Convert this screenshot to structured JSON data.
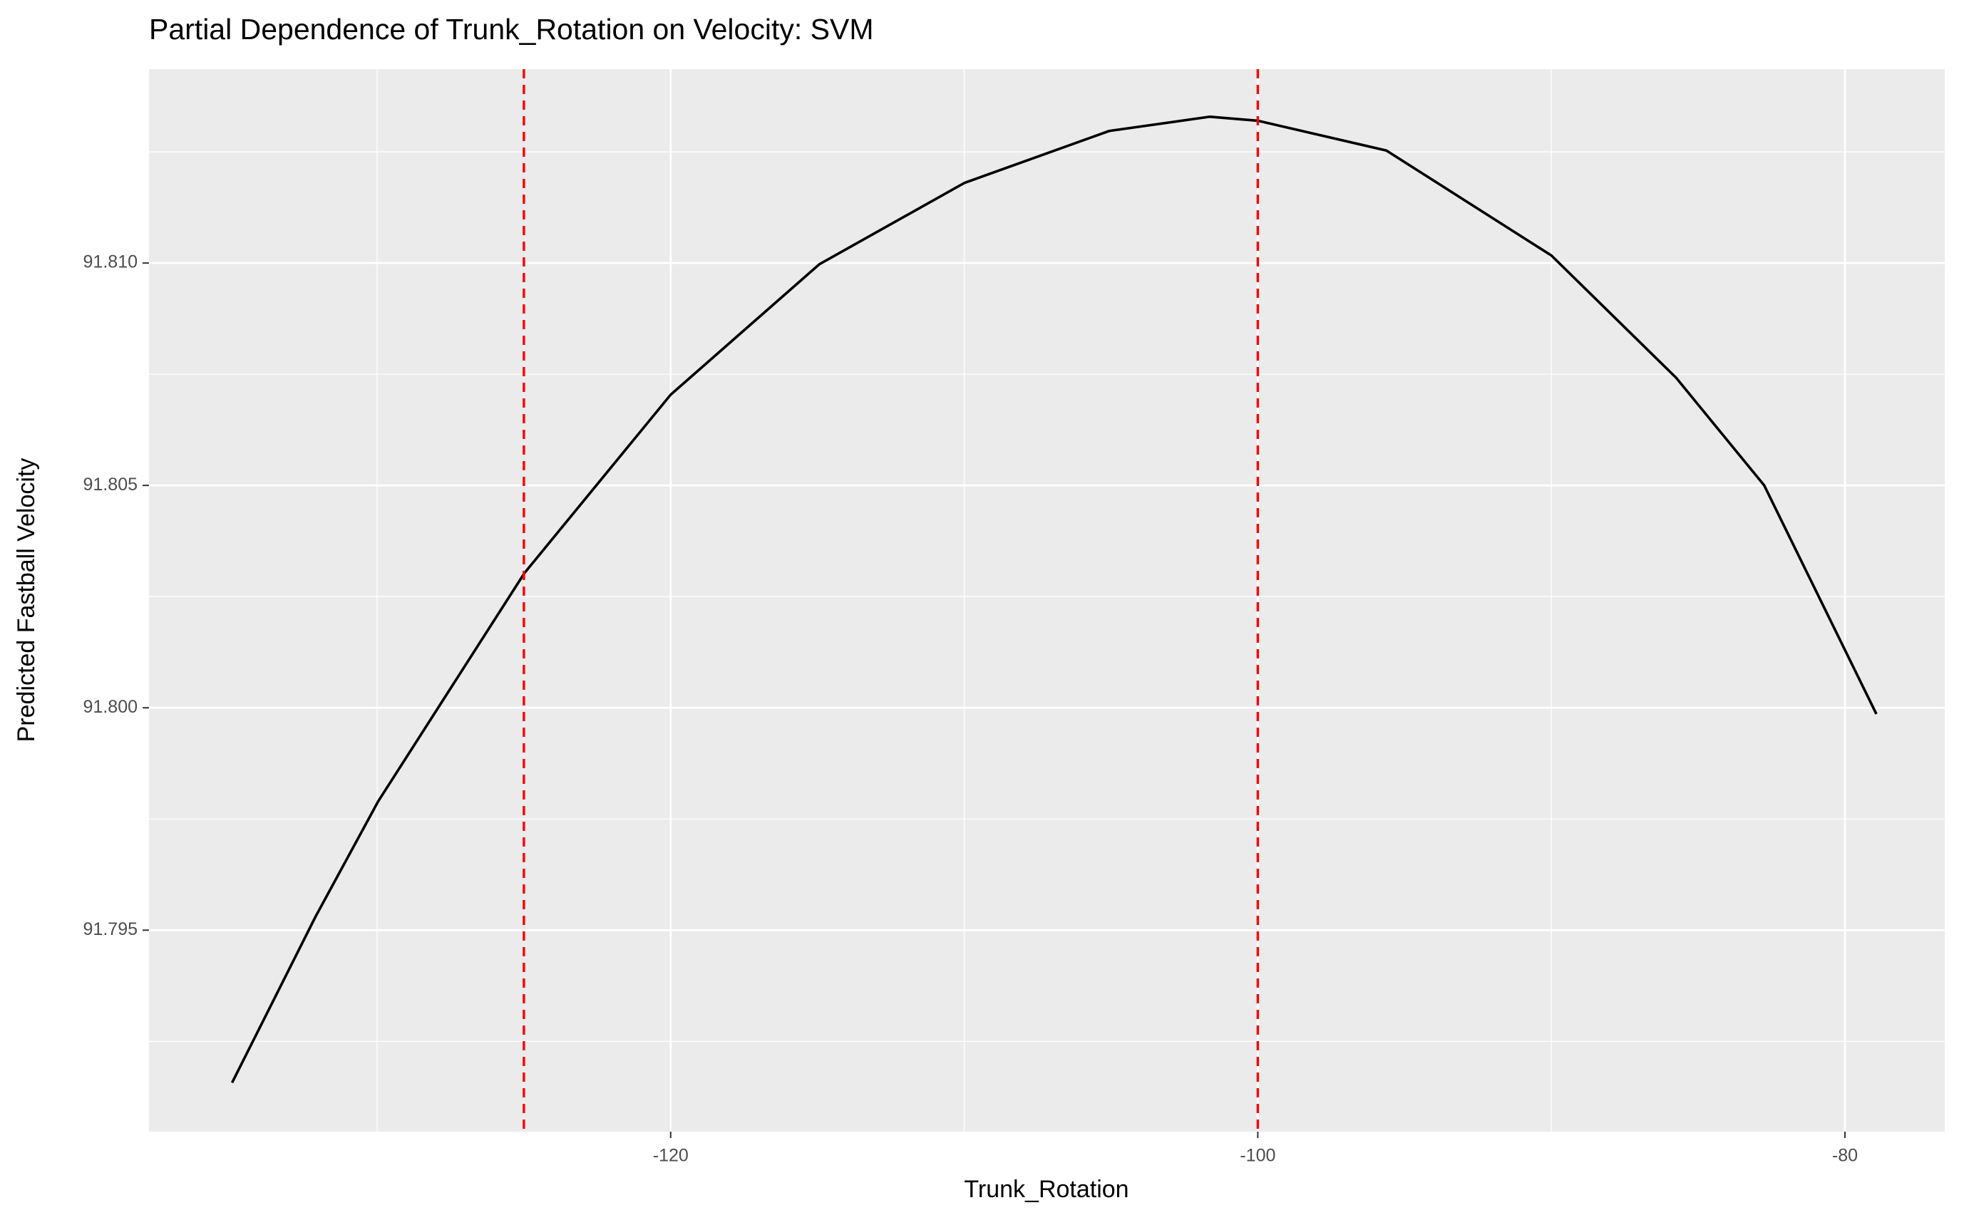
{
  "chart_data": {
    "type": "line",
    "title": "Partial Dependence of Trunk_Rotation on Velocity: SVM",
    "x_label": "Trunk_Rotation",
    "y_label": "Predicted Fastball Velocity",
    "x": [
      -134.94,
      -132.1,
      -129.96,
      -124.98,
      -120,
      -114.94,
      -110,
      -105.06,
      -101.63,
      -100,
      -95.62,
      -90,
      -85.75,
      -82.75,
      -78.93
    ],
    "series": [
      {
        "color": "#000000",
        "values": [
          91.79157,
          91.7953,
          91.7979,
          91.80303,
          91.80704,
          91.80997,
          91.8118,
          91.81297,
          91.81329,
          91.8132,
          91.81253,
          91.81017,
          91.80742,
          91.805,
          91.79986
        ]
      }
    ],
    "xlim": [
      -137.77,
      -76.6
    ],
    "ylim": [
      91.79047,
      91.81436
    ],
    "xticks": [
      -120,
      -100,
      -80
    ],
    "yticks": [
      {
        "value": 91.795,
        "label": "91.795"
      },
      {
        "value": 91.8,
        "label": "91.800"
      },
      {
        "value": 91.805,
        "label": "91.805"
      },
      {
        "value": 91.81,
        "label": "91.810"
      }
    ],
    "vlines": [
      -125,
      -100
    ],
    "vline_color": "#ff0000",
    "grid": true
  }
}
